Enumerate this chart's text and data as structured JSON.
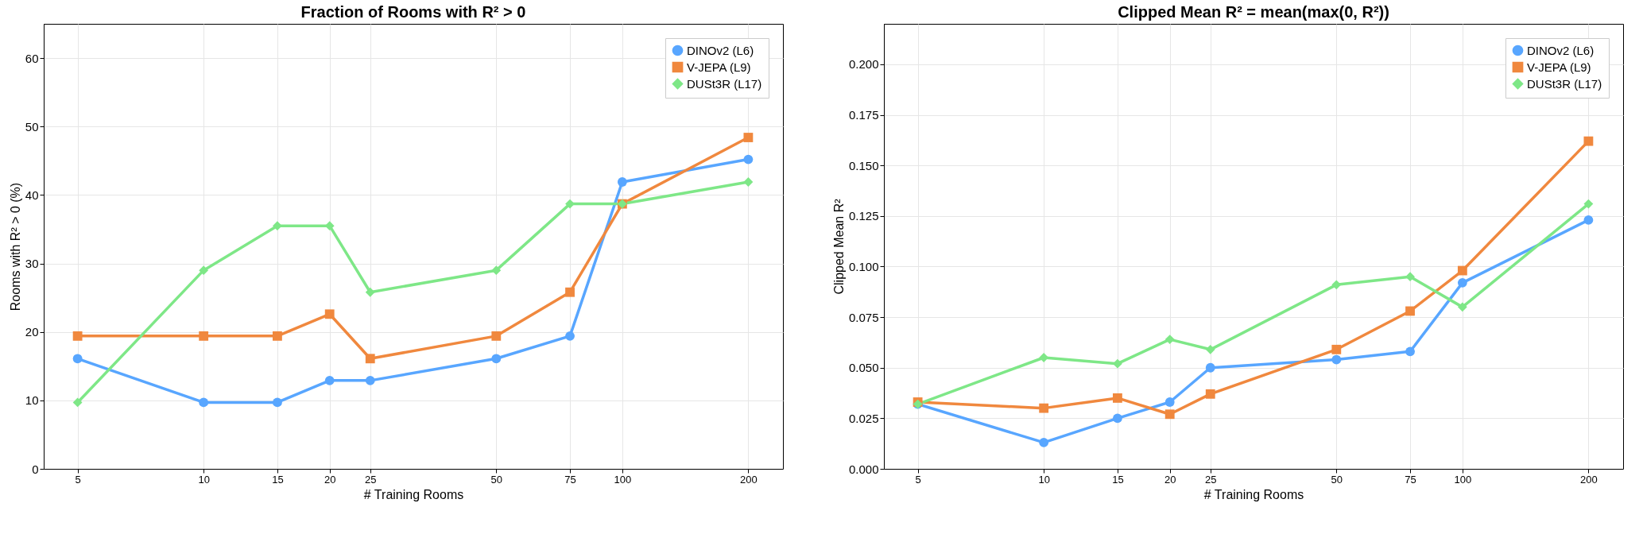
{
  "chart_data": [
    {
      "type": "line",
      "title": "Fraction of Rooms with R² > 0",
      "xlabel": "# Training Rooms",
      "ylabel": "Rooms with R² > 0 (%)",
      "log": "x",
      "grid": true,
      "legend": "top right",
      "x": [
        5,
        10,
        15,
        20,
        25,
        50,
        75,
        100,
        200
      ],
      "xlim": [
        4.15,
        242
      ],
      "xticks": [
        5,
        10,
        15,
        20,
        25,
        50,
        75,
        100,
        200
      ],
      "ylim": [
        0,
        65
      ],
      "yticks": [
        0,
        10,
        20,
        30,
        40,
        50,
        60
      ],
      "series": [
        {
          "name": "DINOv2 (L6)",
          "color": "#58a6ff",
          "marker": "circle",
          "values": [
            16.1,
            9.7,
            9.7,
            12.9,
            12.9,
            16.1,
            19.4,
            41.9,
            45.2
          ]
        },
        {
          "name": "V-JEPA (L9)",
          "color": "#f0883e",
          "marker": "square",
          "values": [
            19.4,
            19.4,
            19.4,
            22.6,
            16.1,
            19.4,
            25.8,
            38.7,
            48.4
          ]
        },
        {
          "name": "DUSt3R (L17)",
          "color": "#7ee787",
          "marker": "diamond",
          "values": [
            9.7,
            29.0,
            35.5,
            35.5,
            25.8,
            29.0,
            38.7,
            38.7,
            41.9
          ]
        }
      ]
    },
    {
      "type": "line",
      "title": "Clipped Mean R² = mean(max(0, R²))",
      "xlabel": "# Training Rooms",
      "ylabel": "Clipped Mean R²",
      "log": "x",
      "grid": true,
      "legend": "top right",
      "x": [
        5,
        10,
        15,
        20,
        25,
        50,
        75,
        100,
        200
      ],
      "xlim": [
        4.15,
        242
      ],
      "xticks": [
        5,
        10,
        15,
        20,
        25,
        50,
        75,
        100,
        200
      ],
      "ylim": [
        0,
        0.22
      ],
      "yticks": [
        {
          "value": 0,
          "label": "0.000"
        },
        {
          "value": 0.025,
          "label": "0.025"
        },
        {
          "value": 0.05,
          "label": "0.050"
        },
        {
          "value": 0.075,
          "label": "0.075"
        },
        {
          "value": 0.1,
          "label": "0.100"
        },
        {
          "value": 0.125,
          "label": "0.125"
        },
        {
          "value": 0.15,
          "label": "0.150"
        },
        {
          "value": 0.175,
          "label": "0.175"
        },
        {
          "value": 0.2,
          "label": "0.200"
        }
      ],
      "series": [
        {
          "name": "DINOv2 (L6)",
          "color": "#58a6ff",
          "marker": "circle",
          "values": [
            0.032,
            0.013,
            0.025,
            0.033,
            0.05,
            0.054,
            0.058,
            0.092,
            0.123
          ]
        },
        {
          "name": "V-JEPA (L9)",
          "color": "#f0883e",
          "marker": "square",
          "values": [
            0.033,
            0.03,
            0.035,
            0.027,
            0.037,
            0.059,
            0.078,
            0.098,
            0.162
          ]
        },
        {
          "name": "DUSt3R (L17)",
          "color": "#7ee787",
          "marker": "diamond",
          "values": [
            0.032,
            0.055,
            0.052,
            0.064,
            0.059,
            0.091,
            0.095,
            0.08,
            0.131
          ]
        }
      ]
    }
  ]
}
